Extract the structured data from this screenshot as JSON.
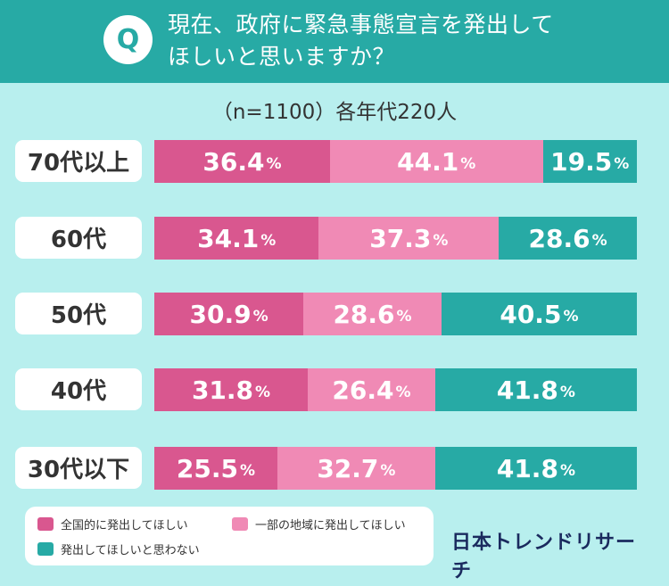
{
  "header": {
    "badge": "Q",
    "question_line1": "現在、政府に緊急事態宣言を発出して",
    "question_line2": "ほしいと思いますか？"
  },
  "sample_note": "（n=1100）各年代220人",
  "colors": {
    "header": "#27aaa5",
    "background": "#b8efee",
    "nationwide": "#d9578f",
    "partial": "#f08ab5",
    "no": "#27aaa5"
  },
  "chart_data": {
    "type": "bar",
    "orientation": "horizontal",
    "stacked": true,
    "normalized_percent": true,
    "title": "現在、政府に緊急事態宣言を発出してほしいと思いますか？",
    "categories": [
      "70代以上",
      "60代",
      "50代",
      "40代",
      "30代以下"
    ],
    "series": [
      {
        "name": "全国的に発出してほしい",
        "values": [
          36.4,
          34.1,
          30.9,
          31.8,
          25.5
        ]
      },
      {
        "name": "一部の地域に発出してほしい",
        "values": [
          44.1,
          37.3,
          28.6,
          26.4,
          32.7
        ]
      },
      {
        "name": "発出してほしいと思わない",
        "values": [
          19.5,
          28.6,
          40.5,
          41.8,
          41.8
        ]
      }
    ],
    "value_labels": [
      [
        "36.4",
        "44.1",
        "19.5"
      ],
      [
        "34.1",
        "37.3",
        "28.6"
      ],
      [
        "30.9",
        "28.6",
        "40.5"
      ],
      [
        "31.8",
        "26.4",
        "41.8"
      ],
      [
        "25.5",
        "32.7",
        "41.8"
      ]
    ],
    "unit": "%",
    "xlim": [
      0,
      100
    ],
    "legend_position": "bottom-left"
  },
  "legend": {
    "items": [
      "全国的に発出してほしい",
      "一部の地域に発出してほしい",
      "発出してほしいと思わない"
    ]
  },
  "brand": "日本トレンドリサーチ"
}
